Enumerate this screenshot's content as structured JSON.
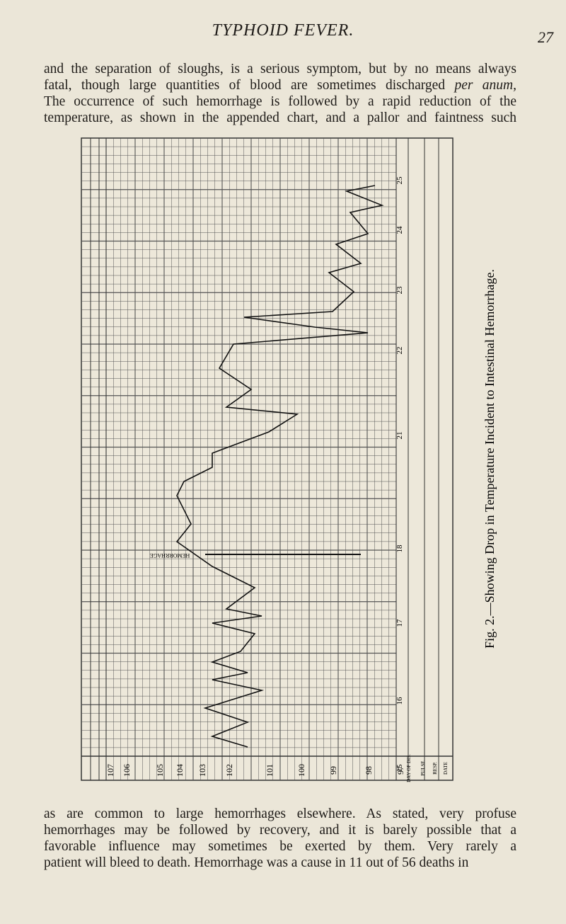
{
  "header": {
    "title": "TYPHOID FEVER.",
    "page_number": "27"
  },
  "paragraph_top": {
    "lines": [
      "and the separation of sloughs, is a serious symptom, but by no means always",
      "fatal, though large quantities of blood are sometimes discharged",
      "per anum,",
      "The occurrence of such hemorrhage is followed by a rapid reduction of the",
      "temperature, as shown in the appended chart, and a pallor and faintness such"
    ]
  },
  "figure": {
    "caption": "Fig. 2.—Showing Drop in Temperature Incident to Intestinal Hemorrhage.",
    "temperature_labels": [
      "107",
      "106",
      "105",
      "104",
      "103",
      "102",
      "101",
      "100",
      "99",
      "98",
      "97"
    ],
    "day_labels": [
      "25",
      "24",
      "23",
      "22",
      "21",
      "18",
      "17",
      "16",
      "15"
    ],
    "row_labels": [
      "DAY OF DIS.",
      "PULSE",
      "RESP.",
      "DATE"
    ],
    "annotation": "HEMORRHAGE"
  },
  "paragraph_bottom": {
    "lines": [
      "as are common to large hemorrhages elsewhere. As stated, very profuse",
      "hemorrhages may be followed by recovery, and it is barely possible that a",
      "favorable influence may sometimes be exerted by them. Very rarely a",
      "patient will bleed to death. Hemorrhage was a cause in 11 out of 56 deaths in"
    ]
  }
}
